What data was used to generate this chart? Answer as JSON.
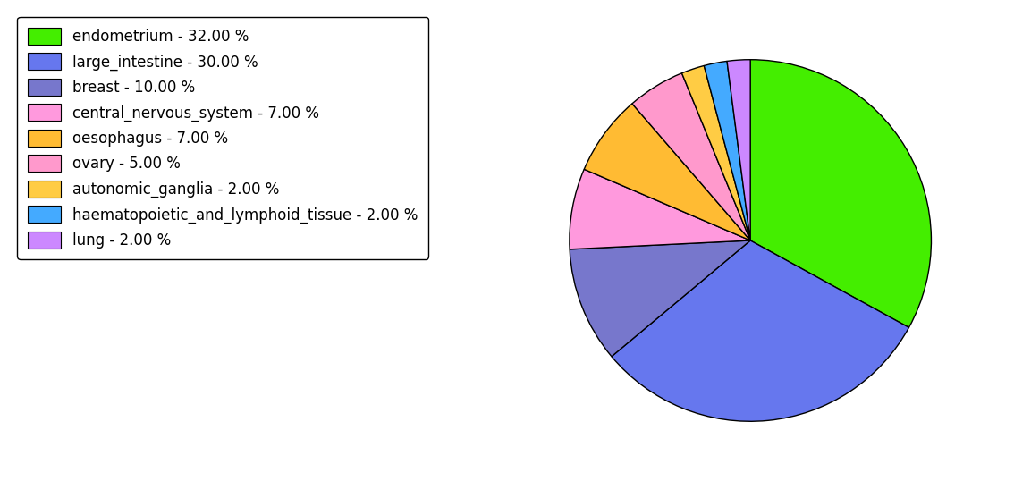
{
  "labels": [
    "endometrium - 32.00 %",
    "large_intestine - 30.00 %",
    "breast - 10.00 %",
    "central_nervous_system - 7.00 %",
    "oesophagus - 7.00 %",
    "ovary - 5.00 %",
    "autonomic_ganglia - 2.00 %",
    "haematopoietic_and_lymphoid_tissue - 2.00 %",
    "lung - 2.00 %"
  ],
  "values": [
    32,
    30,
    10,
    7,
    7,
    5,
    2,
    2,
    2
  ],
  "colors": [
    "#44ee00",
    "#6677ee",
    "#7777cc",
    "#ff99dd",
    "#ffbb33",
    "#ff99cc",
    "#ffcc44",
    "#44aaff",
    "#cc88ff"
  ],
  "startangle": 90,
  "legend_fontsize": 12,
  "figsize": [
    11.34,
    5.38
  ]
}
